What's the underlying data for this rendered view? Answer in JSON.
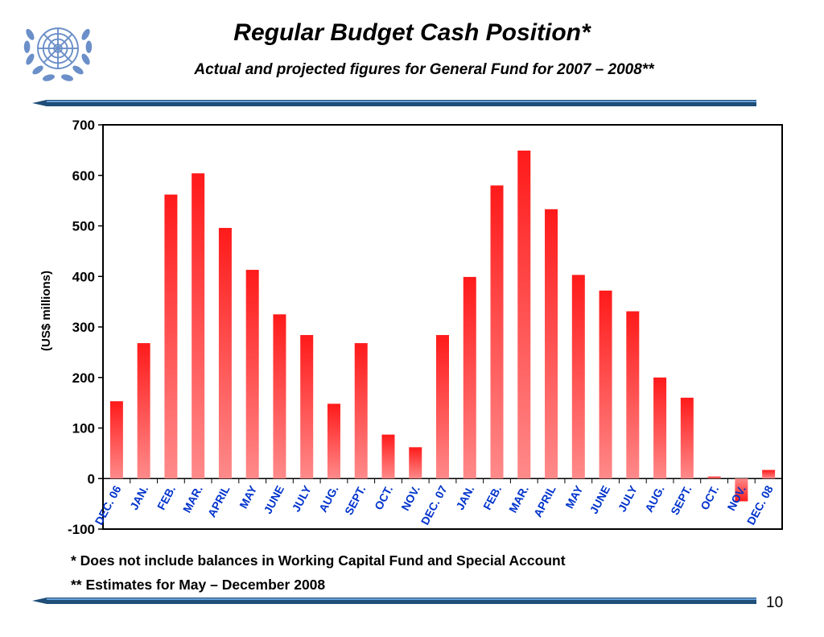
{
  "slide": {
    "title": "Regular Budget Cash Position*",
    "subtitle": "Actual and projected figures for General Fund for 2007 – 2008**",
    "footnotes": [
      "* Does not include balances in Working Capital Fund and Special Account",
      "** Estimates for May – December 2008"
    ],
    "page_number": "10",
    "logo_icon": "un-emblem-icon"
  },
  "colors": {
    "bar_top": "#ff1a1a",
    "bar_bottom": "#ff8a8a",
    "tick_label": "#0033cc",
    "rule": "#1f4e79"
  },
  "chart_data": {
    "type": "bar",
    "title": "",
    "xlabel": "",
    "ylabel": "(US$  millions)",
    "ylim": [
      -100,
      700
    ],
    "yticks": [
      -100,
      0,
      100,
      200,
      300,
      400,
      500,
      600,
      700
    ],
    "grid": false,
    "legend": "none",
    "categories": [
      "DEC. 06",
      "JAN.",
      "FEB.",
      "MAR.",
      "APRIL",
      "MAY",
      "JUNE",
      "JULY",
      "AUG.",
      "SEPT.",
      "OCT.",
      "NOV.",
      "DEC. 07",
      "JAN.",
      "FEB.",
      "MAR.",
      "APRIL",
      "MAY",
      "JUNE",
      "JULY",
      "AUG.",
      "SEPT.",
      "OCT.",
      "NOV.",
      "DEC. 08"
    ],
    "values": [
      153,
      268,
      562,
      604,
      496,
      413,
      325,
      284,
      148,
      268,
      87,
      62,
      284,
      399,
      580,
      649,
      533,
      403,
      372,
      331,
      200,
      160,
      4,
      -45,
      17
    ]
  }
}
